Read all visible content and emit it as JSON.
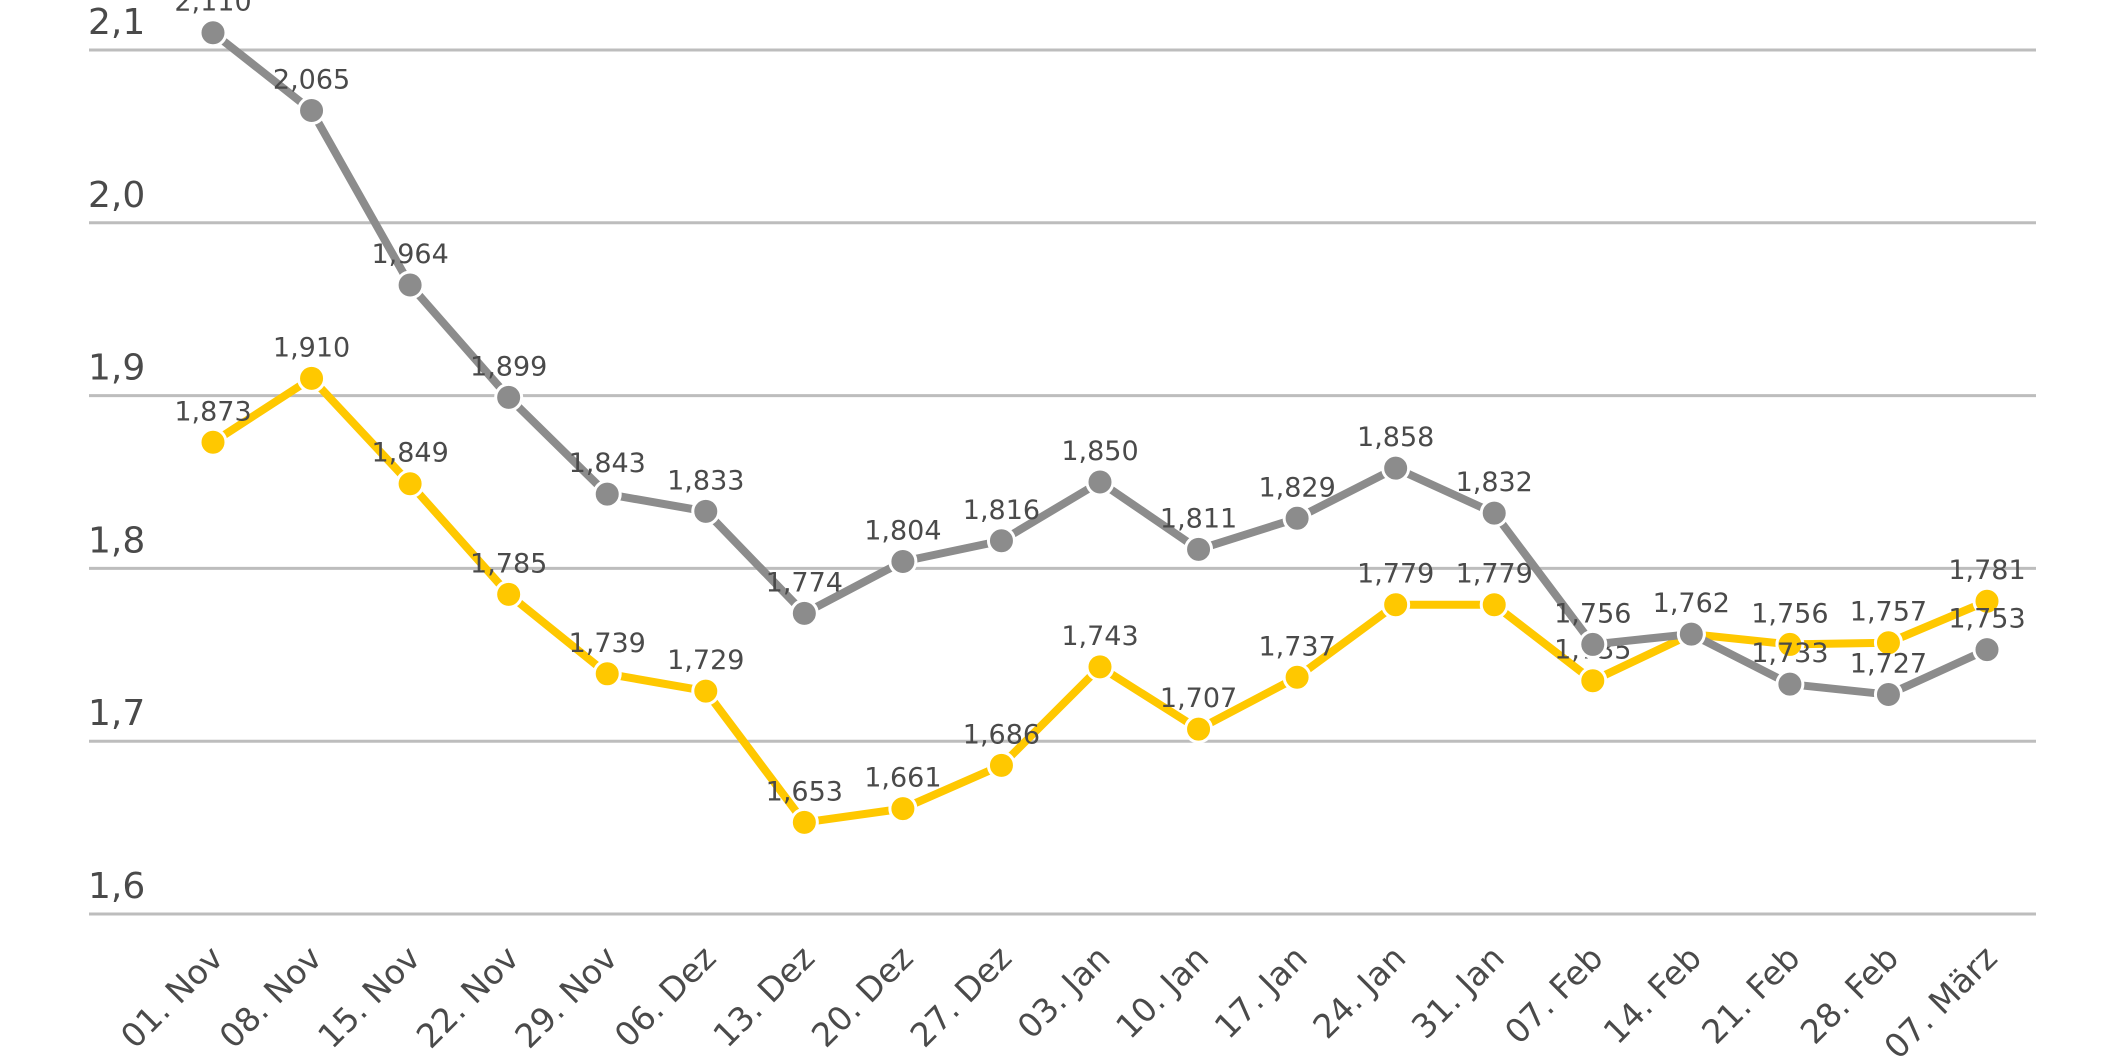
{
  "chart_data": {
    "type": "line",
    "title": "",
    "xlabel": "",
    "ylabel": "",
    "ylim": [
      1.6,
      2.1
    ],
    "yticks": [
      "1,6",
      "1,7",
      "1,8",
      "1,9",
      "2,0",
      "2,1"
    ],
    "ytick_values": [
      1.6,
      1.7,
      1.8,
      1.9,
      2.0,
      2.1
    ],
    "grid": true,
    "categories": [
      "01. Nov",
      "08. Nov",
      "15. Nov",
      "22. Nov",
      "29. Nov",
      "06. Dez",
      "13. Dez",
      "20. Dez",
      "27. Dez",
      "03. Jan",
      "10. Jan",
      "17. Jan",
      "24. Jan",
      "31. Jan",
      "07. Feb",
      "14. Feb",
      "21. Feb",
      "28. Feb",
      "07. März"
    ],
    "series": [
      {
        "name": "yellow",
        "color": "#FFC800",
        "values": [
          1.873,
          1.91,
          1.849,
          1.785,
          1.739,
          1.729,
          1.653,
          1.661,
          1.686,
          1.743,
          1.707,
          1.737,
          1.779,
          1.779,
          1.735,
          1.762,
          1.756,
          1.757,
          1.781
        ],
        "hidden_labels": [
          15
        ]
      },
      {
        "name": "gray",
        "color": "#8C8C8C",
        "values": [
          2.11,
          2.065,
          1.964,
          1.899,
          1.843,
          1.833,
          1.774,
          1.804,
          1.816,
          1.85,
          1.811,
          1.829,
          1.858,
          1.832,
          1.756,
          1.762,
          1.733,
          1.727,
          1.753
        ],
        "hidden_labels": []
      }
    ]
  }
}
